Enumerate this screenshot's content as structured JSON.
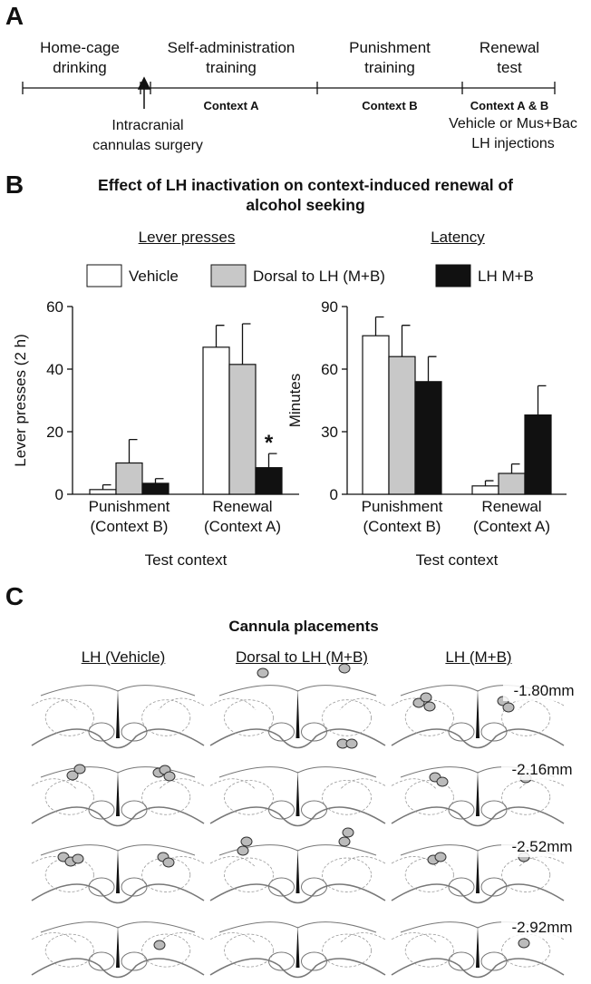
{
  "panel_labels": [
    "A",
    "B",
    "C"
  ],
  "timeline": {
    "phases": [
      "Home-cage drinking",
      "Self-administration training",
      "Punishment training",
      "Renewal test"
    ],
    "contexts": [
      "Context A",
      "Context B",
      "Context A & B"
    ],
    "surgery": "Intracranial cannulas surgery",
    "injections": "Vehicle or Mus+Bac LH injections"
  },
  "figure_title": "Effect of LH inactivation on context-induced renewal  of alcohol seeking",
  "chart_data": [
    {
      "type": "bar",
      "title": "Lever presses",
      "ylabel": "Lever presses (2 h)",
      "xlabel": "Test context",
      "categories": [
        "Punishment (Context B)",
        "Renewal (Context A)"
      ],
      "ylim": [
        0,
        60
      ],
      "yticks": [
        0,
        20,
        40,
        60
      ],
      "grid": false,
      "series": [
        {
          "name": "Vehicle",
          "color": "#ffffff",
          "values": [
            1.5,
            47
          ],
          "errors": [
            1.5,
            7
          ]
        },
        {
          "name": "Dorsal to LH (M+B)",
          "color": "#c8c8c8",
          "values": [
            10,
            41.5
          ],
          "errors": [
            7.5,
            13
          ]
        },
        {
          "name": "LH M+B",
          "color": "#111111",
          "values": [
            3.5,
            8.5
          ],
          "errors": [
            1.5,
            4.5
          ]
        }
      ],
      "annotations": [
        {
          "text": "*",
          "category": 1,
          "series": 2
        }
      ]
    },
    {
      "type": "bar",
      "title": "Latency",
      "ylabel": "Minutes",
      "xlabel": "Test context",
      "categories": [
        "Punishment (Context B)",
        "Renewal (Context A)"
      ],
      "ylim": [
        0,
        90
      ],
      "yticks": [
        0,
        30,
        60,
        90
      ],
      "grid": false,
      "series": [
        {
          "color": "#ffffff",
          "values": [
            76,
            4
          ],
          "errors": [
            9,
            2.5
          ]
        },
        {
          "color": "#c8c8c8",
          "values": [
            66,
            10
          ],
          "errors": [
            15,
            4.5
          ]
        },
        {
          "color": "#111111",
          "values": [
            54,
            38
          ],
          "errors": [
            12,
            14
          ]
        }
      ]
    }
  ],
  "placements": {
    "title": "Cannula placements",
    "groups": [
      "LH (Vehicle)",
      "Dorsal to LH (M+B)",
      "LH (M+B)"
    ],
    "levels": [
      "-1.80mm",
      "-2.16mm",
      "-2.52mm",
      "-2.92mm"
    ]
  }
}
